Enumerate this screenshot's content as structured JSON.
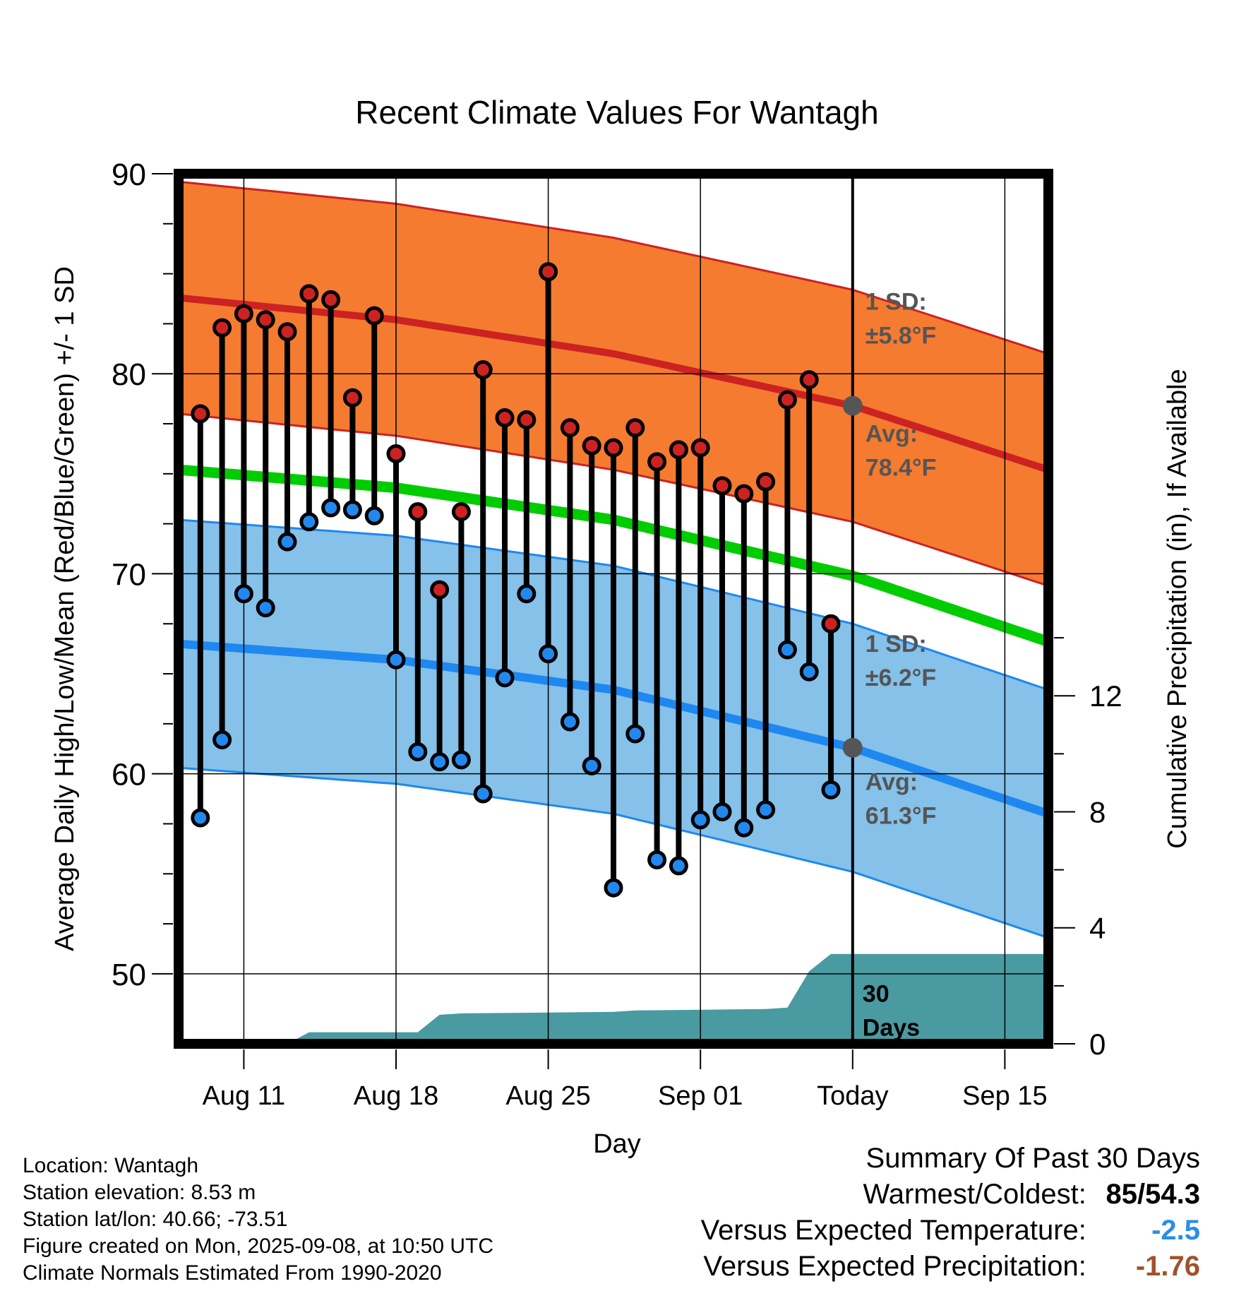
{
  "chart_data": {
    "type": "line",
    "title": "Recent Climate Values For Wantagh",
    "xlabel": "Day",
    "ylabel": "Average Daily High/Low/Mean (Red/Blue/Green) +/- 1 SD",
    "y2label": "Cumulative Precipitation (in), If Available",
    "ylim": [
      46.5,
      90
    ],
    "y2lim": [
      0,
      30
    ],
    "xlim": [
      "2025-08-08",
      "2025-09-17"
    ],
    "x_ticks": [
      {
        "date": "2025-08-11",
        "label": "Aug 11"
      },
      {
        "date": "2025-08-18",
        "label": "Aug 18"
      },
      {
        "date": "2025-08-25",
        "label": "Aug 25"
      },
      {
        "date": "2025-09-01",
        "label": "Sep 01"
      },
      {
        "date": "2025-09-08",
        "label": "Today"
      },
      {
        "date": "2025-09-15",
        "label": "Sep 15"
      }
    ],
    "y_ticks": [
      50,
      60,
      70,
      80,
      90
    ],
    "y2_ticks": [
      0,
      4,
      8,
      12
    ],
    "grid": true,
    "today": "2025-09-08",
    "normals": {
      "dates": [
        "2025-08-08",
        "2025-08-18",
        "2025-08-28",
        "2025-09-08",
        "2025-09-17"
      ],
      "high_mean": [
        83.8,
        82.7,
        81.0,
        78.4,
        75.2
      ],
      "high_sd": 5.8,
      "low_mean": [
        66.5,
        65.7,
        64.2,
        61.3,
        58.0
      ],
      "low_sd": 6.2,
      "mean": [
        75.2,
        74.3,
        72.7,
        69.9,
        66.6
      ]
    },
    "series": [
      {
        "name": "Observed High",
        "color": "#cc2222",
        "x": [
          "2025-08-09",
          "2025-08-10",
          "2025-08-11",
          "2025-08-12",
          "2025-08-13",
          "2025-08-14",
          "2025-08-15",
          "2025-08-16",
          "2025-08-17",
          "2025-08-18",
          "2025-08-19",
          "2025-08-20",
          "2025-08-21",
          "2025-08-22",
          "2025-08-23",
          "2025-08-24",
          "2025-08-25",
          "2025-08-26",
          "2025-08-27",
          "2025-08-28",
          "2025-08-29",
          "2025-08-30",
          "2025-08-31",
          "2025-09-01",
          "2025-09-02",
          "2025-09-03",
          "2025-09-04",
          "2025-09-05",
          "2025-09-06",
          "2025-09-07"
        ],
        "values": [
          78.0,
          82.3,
          83.0,
          82.7,
          82.1,
          84.0,
          83.7,
          78.8,
          82.9,
          76.0,
          73.1,
          69.2,
          73.1,
          80.2,
          77.8,
          77.7,
          85.1,
          77.3,
          76.4,
          76.3,
          77.3,
          75.6,
          76.2,
          76.3,
          74.4,
          74.0,
          74.6,
          78.7,
          79.7,
          67.5
        ]
      },
      {
        "name": "Observed Low",
        "color": "#2288ee",
        "x": [
          "2025-08-09",
          "2025-08-10",
          "2025-08-11",
          "2025-08-12",
          "2025-08-13",
          "2025-08-14",
          "2025-08-15",
          "2025-08-16",
          "2025-08-17",
          "2025-08-18",
          "2025-08-19",
          "2025-08-20",
          "2025-08-21",
          "2025-08-22",
          "2025-08-23",
          "2025-08-24",
          "2025-08-25",
          "2025-08-26",
          "2025-08-27",
          "2025-08-28",
          "2025-08-29",
          "2025-08-30",
          "2025-08-31",
          "2025-09-01",
          "2025-09-02",
          "2025-09-03",
          "2025-09-04",
          "2025-09-05",
          "2025-09-06",
          "2025-09-07"
        ],
        "values": [
          57.8,
          61.7,
          69.0,
          68.3,
          71.6,
          72.6,
          73.3,
          73.2,
          72.9,
          65.7,
          61.1,
          60.6,
          60.7,
          59.0,
          64.8,
          69.0,
          66.0,
          62.6,
          60.4,
          54.3,
          62.0,
          55.7,
          55.4,
          57.7,
          58.1,
          57.3,
          58.2,
          66.2,
          65.1,
          59.2
        ]
      }
    ],
    "precipitation": {
      "x": [
        "2025-08-08",
        "2025-08-13",
        "2025-08-14",
        "2025-08-19",
        "2025-08-20",
        "2025-08-21",
        "2025-08-28",
        "2025-08-29",
        "2025-09-04",
        "2025-09-05",
        "2025-09-06",
        "2025-09-07",
        "2025-09-17"
      ],
      "values": [
        0,
        0,
        0.4,
        0.4,
        1.0,
        1.05,
        1.1,
        1.15,
        1.2,
        1.25,
        2.5,
        3.1,
        3.1
      ]
    },
    "annotations": {
      "high_sd_label": "1 SD:",
      "high_sd_value": "±5.8°F",
      "high_avg_label": "Avg:",
      "high_avg_value": "78.4°F",
      "low_sd_label": "1 SD:",
      "low_sd_value": "±6.2°F",
      "low_avg_label": "Avg:",
      "low_avg_value": "61.3°F",
      "precip_days_1": "30",
      "precip_days_2": "Days"
    }
  },
  "colors": {
    "high_band": "#f47b30",
    "high_line": "#cc2222",
    "low_band": "#85c1e9",
    "low_line": "#1e88f0",
    "mean_line": "#00cc00",
    "precip": "#4a9aa2",
    "annotation": "#555555"
  },
  "meta": {
    "location": "Location: Wantagh",
    "elevation": "Station elevation: 8.53 m",
    "latlon": "Station lat/lon: 40.66; -73.51",
    "created": "Figure created on Mon, 2025-09-08, at 10:50 UTC",
    "normals": "Climate Normals Estimated From 1990-2020"
  },
  "summary": {
    "title": "Summary Of Past 30 Days",
    "warm_cold_label": "Warmest/Coldest:",
    "warmest": "85",
    "slash": "/",
    "coldest": "54.3",
    "temp_label": "Versus Expected Temperature:",
    "temp_value": "-2.5",
    "temp_color": "#2a8ee8",
    "precip_label": "Versus Expected Precipitation:",
    "precip_value": "-1.76",
    "precip_color": "#a0522d"
  }
}
